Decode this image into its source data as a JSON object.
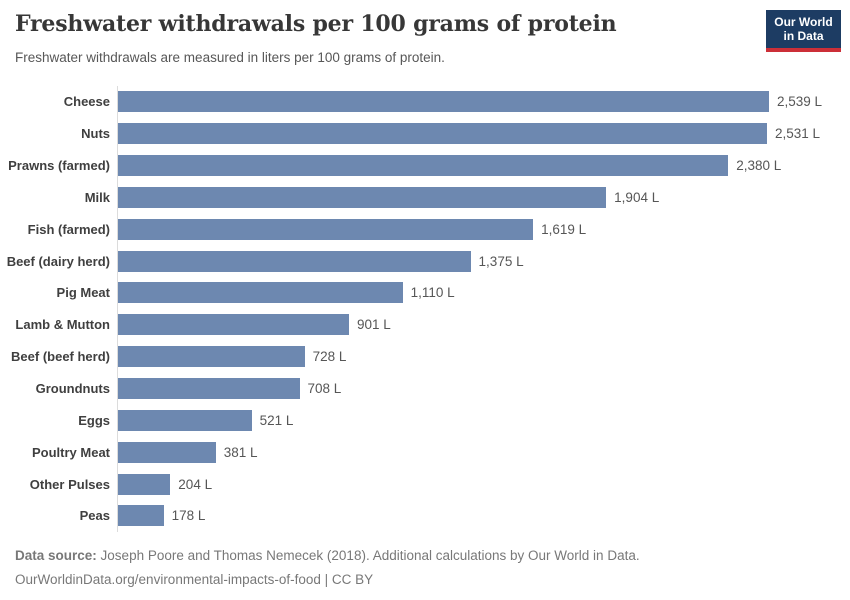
{
  "header": {
    "title": "Freshwater withdrawals per 100 grams of protein",
    "subtitle": "Freshwater withdrawals are measured in liters per 100 grams of protein.",
    "logo": {
      "line1": "Our World",
      "line2": "in Data",
      "bg_color": "#1d3c63",
      "accent_color": "#cc2f38"
    }
  },
  "chart_data": {
    "type": "bar",
    "orientation": "horizontal",
    "title": "Freshwater withdrawals per 100 grams of protein",
    "subtitle": "Freshwater withdrawals are measured in liters per 100 grams of protein.",
    "unit": "L",
    "categories": [
      "Cheese",
      "Nuts",
      "Prawns (farmed)",
      "Milk",
      "Fish (farmed)",
      "Beef (dairy herd)",
      "Pig Meat",
      "Lamb & Mutton",
      "Beef (beef herd)",
      "Groundnuts",
      "Eggs",
      "Poultry Meat",
      "Other Pulses",
      "Peas"
    ],
    "values": [
      2539,
      2531,
      2380,
      1904,
      1619,
      1375,
      1110,
      901,
      728,
      708,
      521,
      381,
      204,
      178
    ],
    "value_labels": [
      "2,539 L",
      "2,531 L",
      "2,380 L",
      "1,904 L",
      "1,619 L",
      "1,375 L",
      "1,110 L",
      "901 L",
      "728 L",
      "708 L",
      "521 L",
      "381 L",
      "204 L",
      "178 L"
    ],
    "xlim": [
      0,
      2539
    ],
    "grid": false,
    "legend": false,
    "bar_color": "#6d88b0",
    "axis_color": "#dcdcdc",
    "category_label_color": "#3f3f3f",
    "value_label_color": "#565656"
  },
  "footer": {
    "source_label": "Data source:",
    "source_text": "Joseph Poore and Thomas Nemecek (2018). Additional calculations by Our World in Data.",
    "url_line": "OurWorldinData.org/environmental-impacts-of-food | CC BY"
  }
}
